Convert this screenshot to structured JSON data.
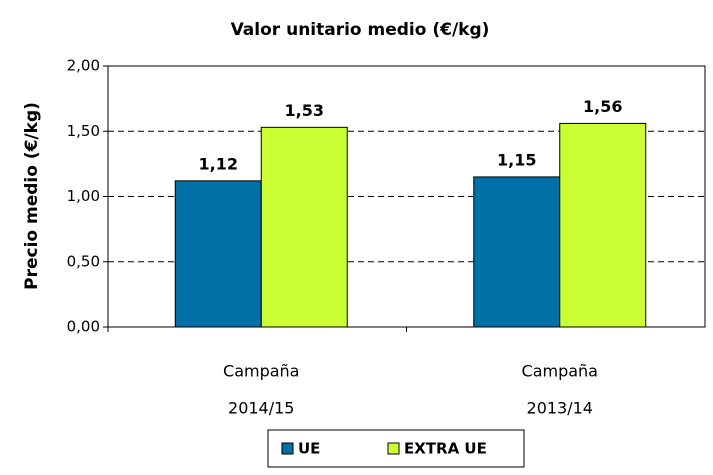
{
  "chart_data": {
    "type": "bar",
    "title": "Valor unitario medio (€/kg)",
    "y_label": "Precio medio (€/kg)",
    "categories": [
      [
        "Campaña",
        "2014/15"
      ],
      [
        "Campaña",
        "2013/14"
      ]
    ],
    "series": [
      {
        "name": "UE",
        "color": "#0070a6",
        "values": [
          1.12,
          1.15
        ],
        "value_labels": [
          "1,12",
          "1,15"
        ]
      },
      {
        "name": "EXTRA UE",
        "color": "#ccff33",
        "values": [
          1.53,
          1.56
        ],
        "value_labels": [
          "1,53",
          "1,56"
        ]
      }
    ],
    "ylim": [
      0,
      2
    ],
    "yticks": [
      {
        "value": 0,
        "label": "0,00"
      },
      {
        "value": 0.5,
        "label": "0,50"
      },
      {
        "value": 1,
        "label": "1,00"
      },
      {
        "value": 1.5,
        "label": "1,50"
      },
      {
        "value": 2,
        "label": "2,00"
      }
    ],
    "grid": true,
    "legend": "bottom"
  }
}
